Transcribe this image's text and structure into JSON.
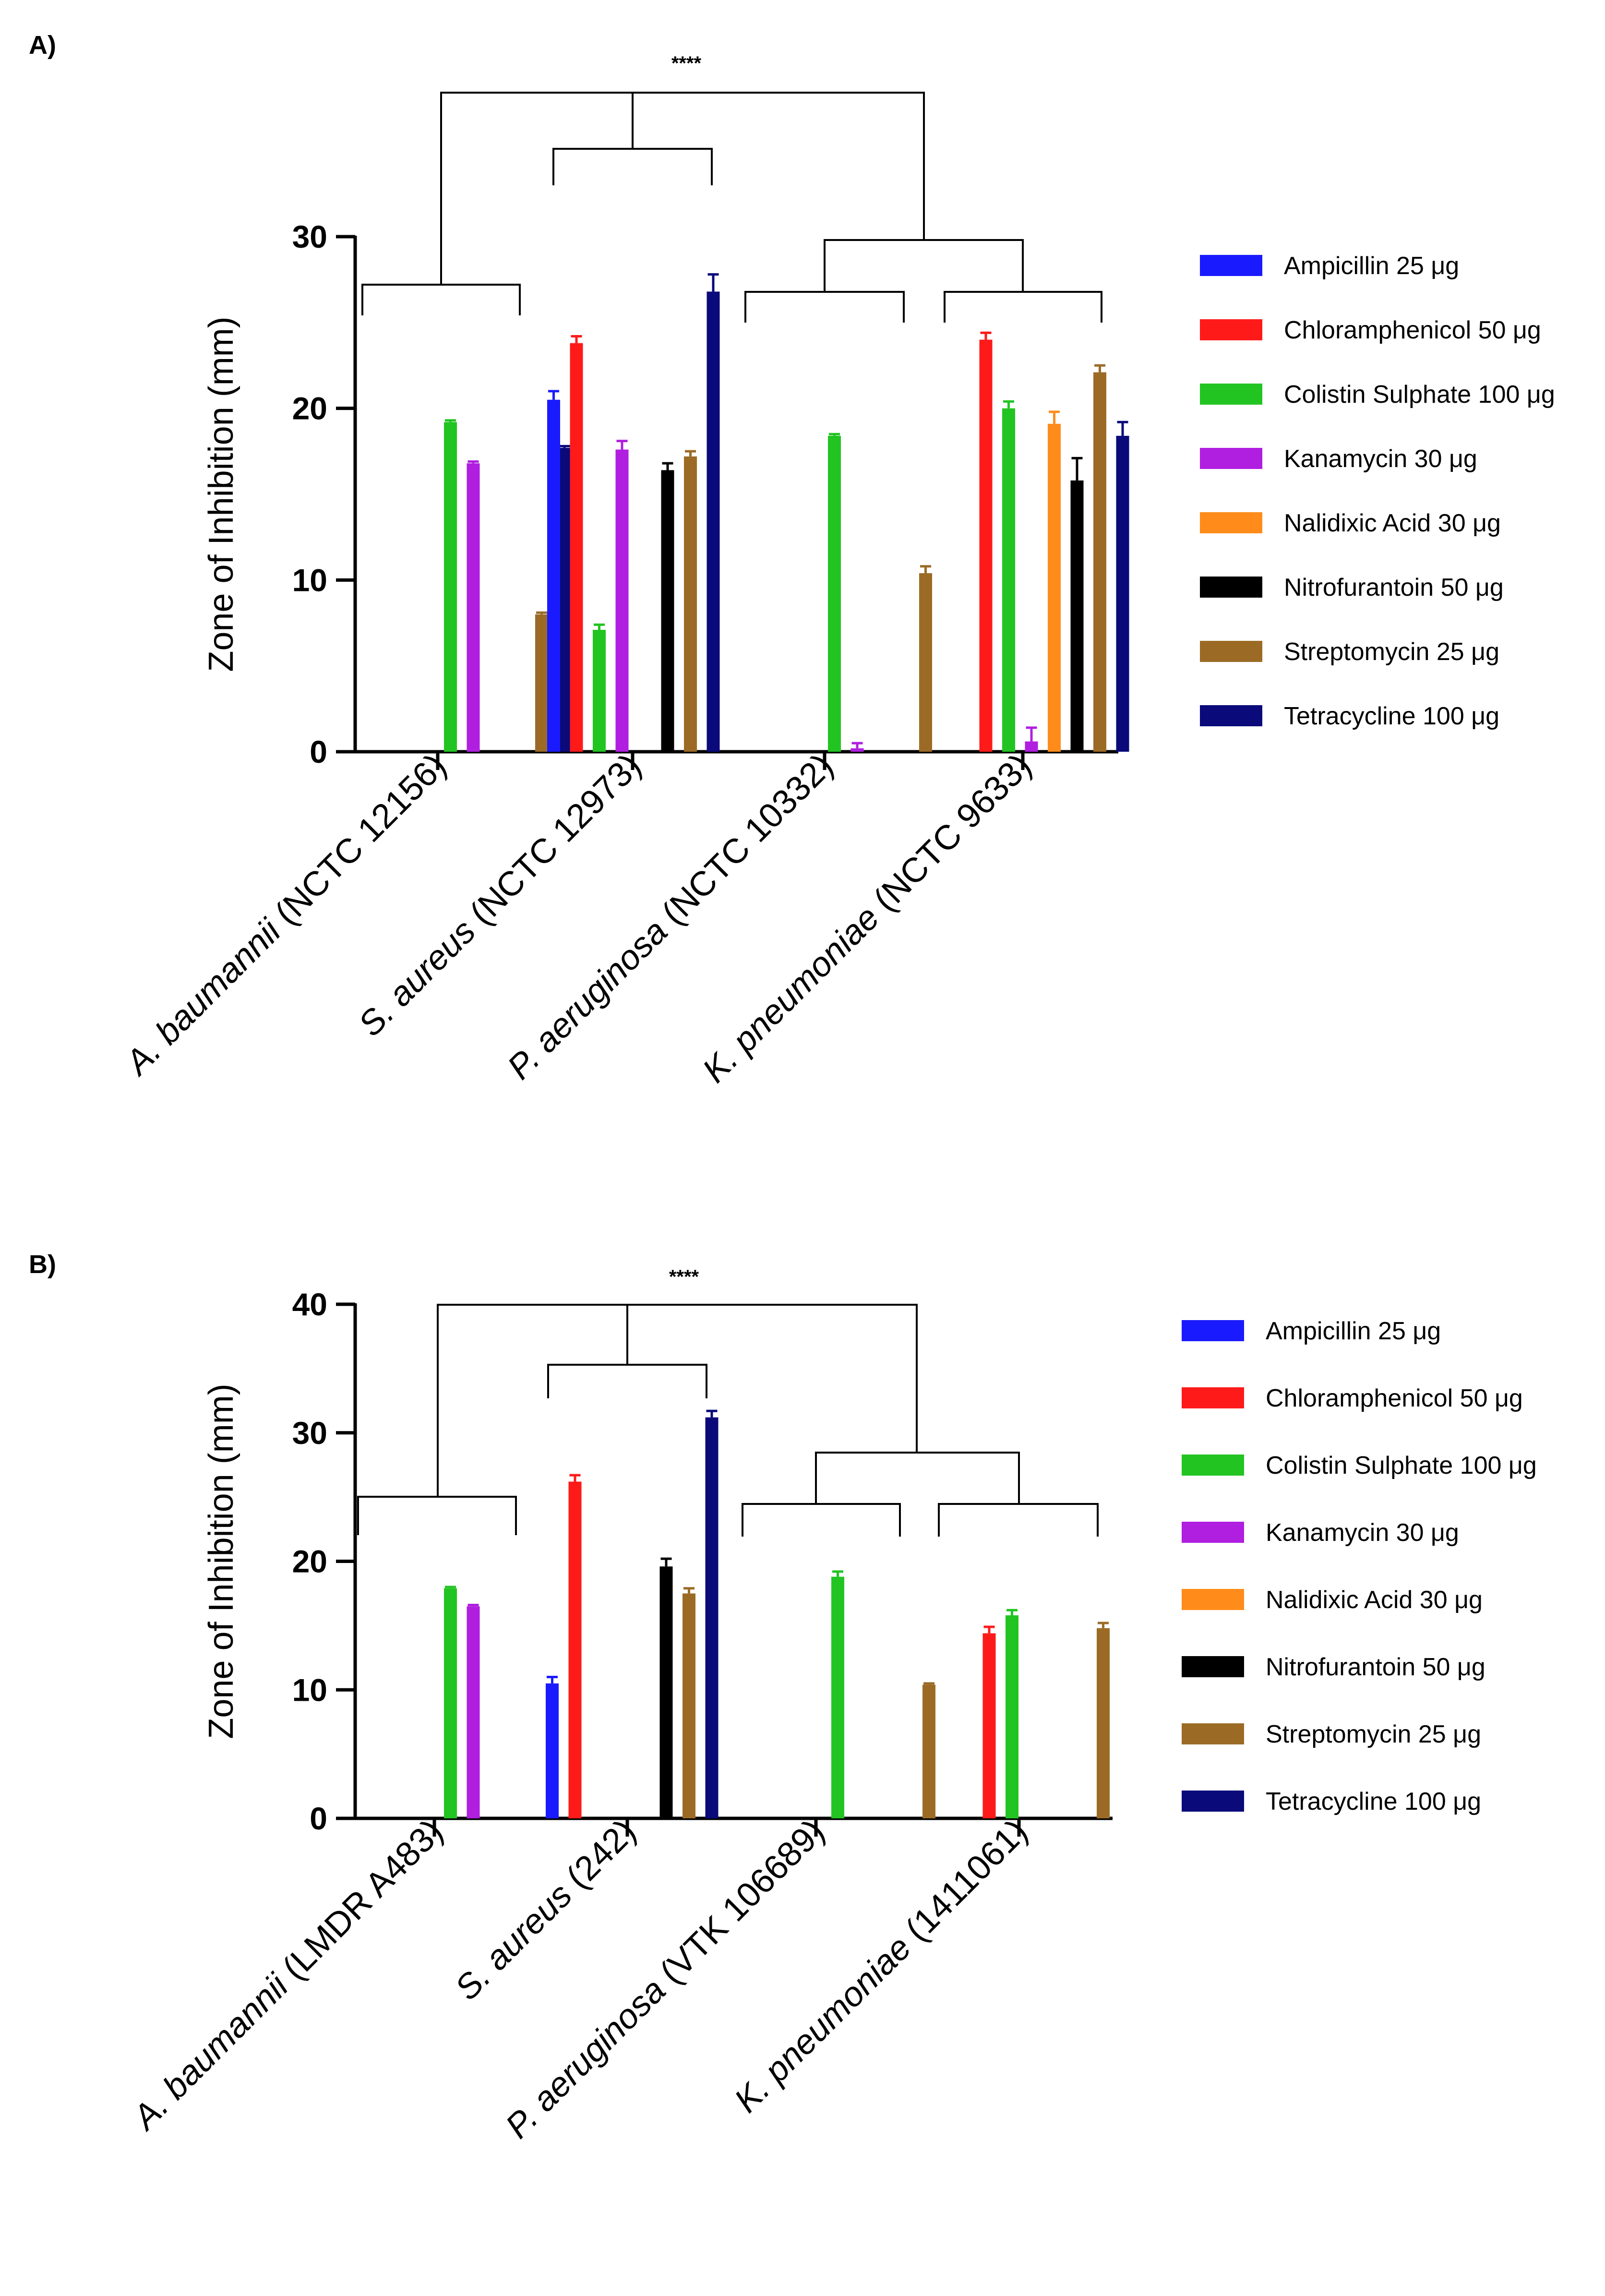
{
  "chart_data": [
    {
      "type": "bar",
      "panel_label": "A)",
      "ylabel": "Zone of Inhibition (mm)",
      "ylim": [
        0,
        30
      ],
      "yticks": [
        0,
        10,
        20,
        30
      ],
      "categories": [
        {
          "italic": "A. baumannii",
          "rest": " (NCTC 12156)"
        },
        {
          "italic": "S. aureus",
          "rest": " (NCTC 12973)"
        },
        {
          "italic": "P. aeruginosa",
          "rest": " (NCTC 10332)"
        },
        {
          "italic": "K. pneumoniae",
          "rest": " (NCTC 9633)"
        }
      ],
      "series": [
        {
          "name": "Ampicillin 25 μg",
          "color": "#1a1aff",
          "values": [
            0,
            20.5,
            0,
            0
          ],
          "errors": [
            0,
            0.5,
            0,
            0
          ]
        },
        {
          "name": "Chloramphenicol 50 μg",
          "color": "#ff1a1a",
          "values": [
            0,
            23.8,
            0,
            24.0
          ],
          "errors": [
            0,
            0.4,
            0,
            0.4
          ]
        },
        {
          "name": "Colistin Sulphate 100 μg",
          "color": "#22c422",
          "values": [
            19.2,
            7.1,
            18.4,
            20.0
          ],
          "errors": [
            0.1,
            0.3,
            0.1,
            0.4
          ]
        },
        {
          "name": "Kanamycin 30 μg",
          "color": "#b01ee0",
          "values": [
            16.8,
            17.6,
            0.2,
            0.6
          ],
          "errors": [
            0.1,
            0.5,
            0.3,
            0.8
          ]
        },
        {
          "name": "Nalidixic Acid 30 μg",
          "color": "#ff8c1a",
          "values": [
            0,
            0,
            0,
            19.1
          ],
          "errors": [
            0,
            0,
            0,
            0.7
          ]
        },
        {
          "name": "Nitrofurantoin 50 μg",
          "color": "#000000",
          "values": [
            0,
            16.4,
            0,
            15.8
          ],
          "errors": [
            0,
            0.4,
            0,
            1.3
          ]
        },
        {
          "name": "Streptomycin 25 μg",
          "color": "#9b6b26",
          "values": [
            8.0,
            17.2,
            10.4,
            22.1
          ],
          "errors": [
            0.1,
            0.3,
            0.4,
            0.4
          ]
        },
        {
          "name": "Tetracycline 100 μg",
          "color": "#0a0a7a",
          "values": [
            17.7,
            26.8,
            0,
            18.4
          ],
          "errors": [
            0.1,
            1.0,
            0,
            0.8
          ]
        }
      ],
      "significance": "****"
    },
    {
      "type": "bar",
      "panel_label": "B)",
      "ylabel": "Zone of Inhibition (mm)",
      "ylim": [
        0,
        40
      ],
      "yticks": [
        0,
        10,
        20,
        30,
        40
      ],
      "categories": [
        {
          "italic": "A. baumannii",
          "rest": " (LMDR A483)"
        },
        {
          "italic": "S. aureus",
          "rest": " (242)"
        },
        {
          "italic": "P. aeruginosa",
          "rest": " (VTK 106689)"
        },
        {
          "italic": "K. pneumoniae",
          "rest": " (1411061)"
        }
      ],
      "series": [
        {
          "name": "Ampicillin 25 μg",
          "color": "#1a1aff",
          "values": [
            0,
            10.5,
            0,
            0
          ],
          "errors": [
            0,
            0.5,
            0,
            0
          ]
        },
        {
          "name": "Chloramphenicol 50 μg",
          "color": "#ff1a1a",
          "values": [
            0,
            26.2,
            0,
            14.4
          ],
          "errors": [
            0,
            0.5,
            0,
            0.5
          ]
        },
        {
          "name": "Colistin Sulphate 100 μg",
          "color": "#22c422",
          "values": [
            17.9,
            0,
            18.8,
            15.8
          ],
          "errors": [
            0.1,
            0,
            0.4,
            0.4
          ]
        },
        {
          "name": "Kanamycin 30 μg",
          "color": "#b01ee0",
          "values": [
            16.5,
            0,
            0,
            0
          ],
          "errors": [
            0.1,
            0,
            0,
            0
          ]
        },
        {
          "name": "Nalidixic Acid 30 μg",
          "color": "#ff8c1a",
          "values": [
            0,
            0,
            0,
            0
          ],
          "errors": [
            0,
            0,
            0,
            0
          ]
        },
        {
          "name": "Nitrofurantoin 50 μg",
          "color": "#000000",
          "values": [
            0,
            19.6,
            0,
            0
          ],
          "errors": [
            0,
            0.6,
            0,
            0
          ]
        },
        {
          "name": "Streptomycin 25 μg",
          "color": "#9b6b26",
          "values": [
            0,
            17.5,
            10.4,
            14.8
          ],
          "errors": [
            0,
            0.4,
            0.1,
            0.4
          ]
        },
        {
          "name": "Tetracycline 100 μg",
          "color": "#0a0a7a",
          "values": [
            0,
            31.2,
            0,
            0
          ],
          "errors": [
            0,
            0.5,
            0,
            0
          ]
        }
      ],
      "significance": "****"
    }
  ]
}
